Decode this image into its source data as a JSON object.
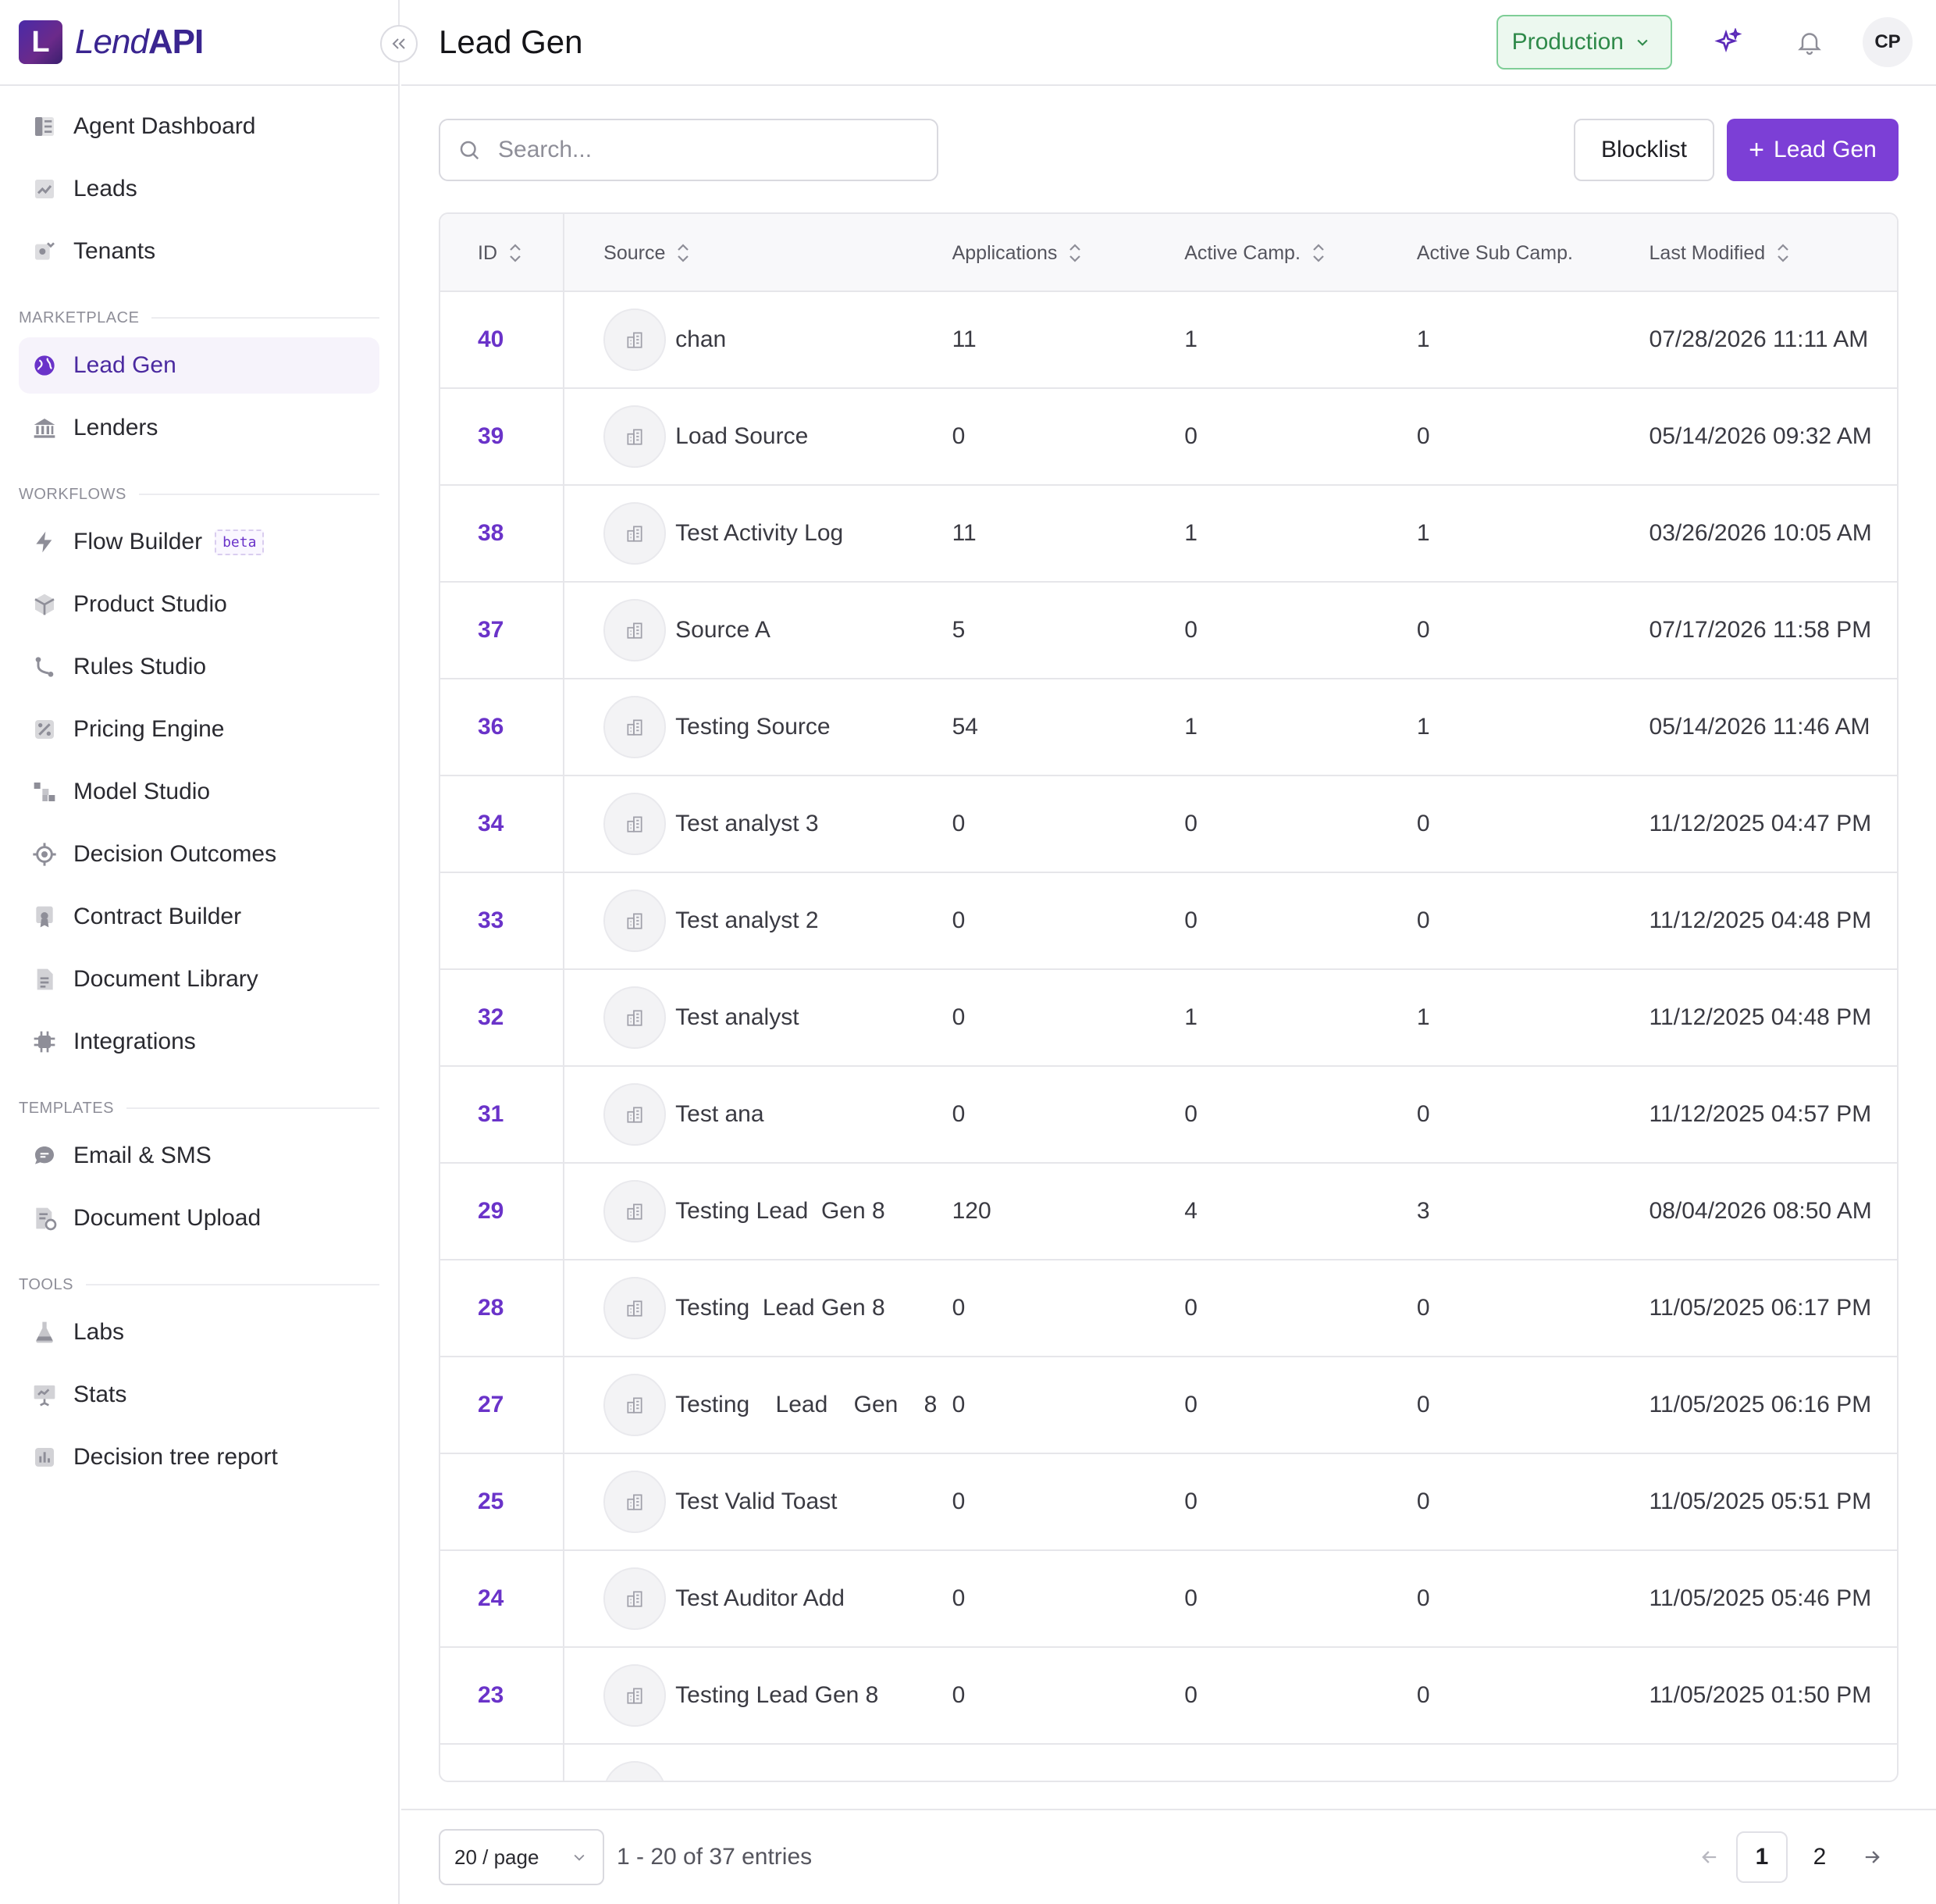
{
  "brand": {
    "logo_letter": "L",
    "name_part1": "Lend",
    "name_part2": "API"
  },
  "sidebar": {
    "collapse_icon": "double-chevron-left-icon",
    "groups": [
      {
        "label": "",
        "items": [
          {
            "label": "Agent Dashboard",
            "icon": "dashboard-icon"
          },
          {
            "label": "Leads",
            "icon": "trend-chart-icon"
          },
          {
            "label": "Tenants",
            "icon": "tenant-icon"
          }
        ]
      },
      {
        "label": "MARKETPLACE",
        "items": [
          {
            "label": "Lead Gen",
            "icon": "globe-icon",
            "active": true
          },
          {
            "label": "Lenders",
            "icon": "bank-icon"
          }
        ]
      },
      {
        "label": "WORKFLOWS",
        "items": [
          {
            "label": "Flow Builder",
            "icon": "lightning-icon",
            "badge": "beta"
          },
          {
            "label": "Product Studio",
            "icon": "box-icon"
          },
          {
            "label": "Rules Studio",
            "icon": "branch-icon"
          },
          {
            "label": "Pricing Engine",
            "icon": "percent-icon"
          },
          {
            "label": "Model Studio",
            "icon": "blocks-icon"
          },
          {
            "label": "Decision Outcomes",
            "icon": "target-icon"
          },
          {
            "label": "Contract Builder",
            "icon": "certificate-icon"
          },
          {
            "label": "Document Library",
            "icon": "document-icon"
          },
          {
            "label": "Integrations",
            "icon": "chip-icon"
          }
        ]
      },
      {
        "label": "TEMPLATES",
        "items": [
          {
            "label": "Email & SMS",
            "icon": "chat-icon"
          },
          {
            "label": "Document Upload",
            "icon": "upload-doc-icon"
          }
        ]
      },
      {
        "label": "TOOLS",
        "items": [
          {
            "label": "Labs",
            "icon": "flask-icon"
          },
          {
            "label": "Stats",
            "icon": "presentation-icon"
          },
          {
            "label": "Decision tree report",
            "icon": "bar-chart-icon"
          }
        ]
      }
    ]
  },
  "header": {
    "title": "Lead Gen",
    "environment": "Production",
    "avatar_initials": "CP",
    "colors": {
      "env_border": "#7fce97",
      "env_bg": "#ecf8ef",
      "env_text": "#2f8a4a",
      "accent": "#7c3fd6"
    }
  },
  "toolbar": {
    "search_placeholder": "Search...",
    "blocklist_label": "Blocklist",
    "add_label": "Lead Gen"
  },
  "table": {
    "columns": [
      "ID",
      "Source",
      "Applications",
      "Active Camp.",
      "Active Sub Camp.",
      "Last Modified"
    ],
    "rows": [
      {
        "id": "40",
        "source": "chan",
        "applications": "11",
        "active_camp": "1",
        "active_sub_camp": "1",
        "last_modified": "07/28/2026 11:11 AM"
      },
      {
        "id": "39",
        "source": "Load Source",
        "applications": "0",
        "active_camp": "0",
        "active_sub_camp": "0",
        "last_modified": "05/14/2026 09:32 AM"
      },
      {
        "id": "38",
        "source": "Test Activity Log",
        "applications": "11",
        "active_camp": "1",
        "active_sub_camp": "1",
        "last_modified": "03/26/2026 10:05 AM"
      },
      {
        "id": "37",
        "source": "Source A",
        "applications": "5",
        "active_camp": "0",
        "active_sub_camp": "0",
        "last_modified": "07/17/2026 11:58 PM"
      },
      {
        "id": "36",
        "source": "Testing Source",
        "applications": "54",
        "active_camp": "1",
        "active_sub_camp": "1",
        "last_modified": "05/14/2026 11:46 AM"
      },
      {
        "id": "34",
        "source": "Test analyst 3",
        "applications": "0",
        "active_camp": "0",
        "active_sub_camp": "0",
        "last_modified": "11/12/2025 04:47 PM"
      },
      {
        "id": "33",
        "source": "Test analyst 2",
        "applications": "0",
        "active_camp": "0",
        "active_sub_camp": "0",
        "last_modified": "11/12/2025 04:48 PM"
      },
      {
        "id": "32",
        "source": "Test analyst",
        "applications": "0",
        "active_camp": "1",
        "active_sub_camp": "1",
        "last_modified": "11/12/2025 04:48 PM"
      },
      {
        "id": "31",
        "source": "Test ana",
        "applications": "0",
        "active_camp": "0",
        "active_sub_camp": "0",
        "last_modified": "11/12/2025 04:57 PM"
      },
      {
        "id": "29",
        "source": "Testing Lead  Gen 8",
        "applications": "120",
        "active_camp": "4",
        "active_sub_camp": "3",
        "last_modified": "08/04/2026 08:50 AM"
      },
      {
        "id": "28",
        "source": "Testing  Lead Gen 8",
        "applications": "0",
        "active_camp": "0",
        "active_sub_camp": "0",
        "last_modified": "11/05/2025 06:17 PM"
      },
      {
        "id": "27",
        "source": "Testing    Lead    Gen    8",
        "applications": "0",
        "active_camp": "0",
        "active_sub_camp": "0",
        "last_modified": "11/05/2025 06:16 PM"
      },
      {
        "id": "25",
        "source": "Test Valid Toast",
        "applications": "0",
        "active_camp": "0",
        "active_sub_camp": "0",
        "last_modified": "11/05/2025 05:51 PM"
      },
      {
        "id": "24",
        "source": "Test Auditor Add",
        "applications": "0",
        "active_camp": "0",
        "active_sub_camp": "0",
        "last_modified": "11/05/2025 05:46 PM"
      },
      {
        "id": "23",
        "source": "Testing Lead Gen 8",
        "applications": "0",
        "active_camp": "0",
        "active_sub_camp": "0",
        "last_modified": "11/05/2025 01:50 PM"
      },
      {
        "id": "",
        "source": "",
        "applications": "",
        "active_camp": "",
        "active_sub_camp": "",
        "last_modified": ""
      }
    ]
  },
  "footer": {
    "page_size": "20 / page",
    "entries_text": "1 - 20 of 37 entries",
    "pages": [
      "1",
      "2"
    ],
    "current_page": "1"
  }
}
